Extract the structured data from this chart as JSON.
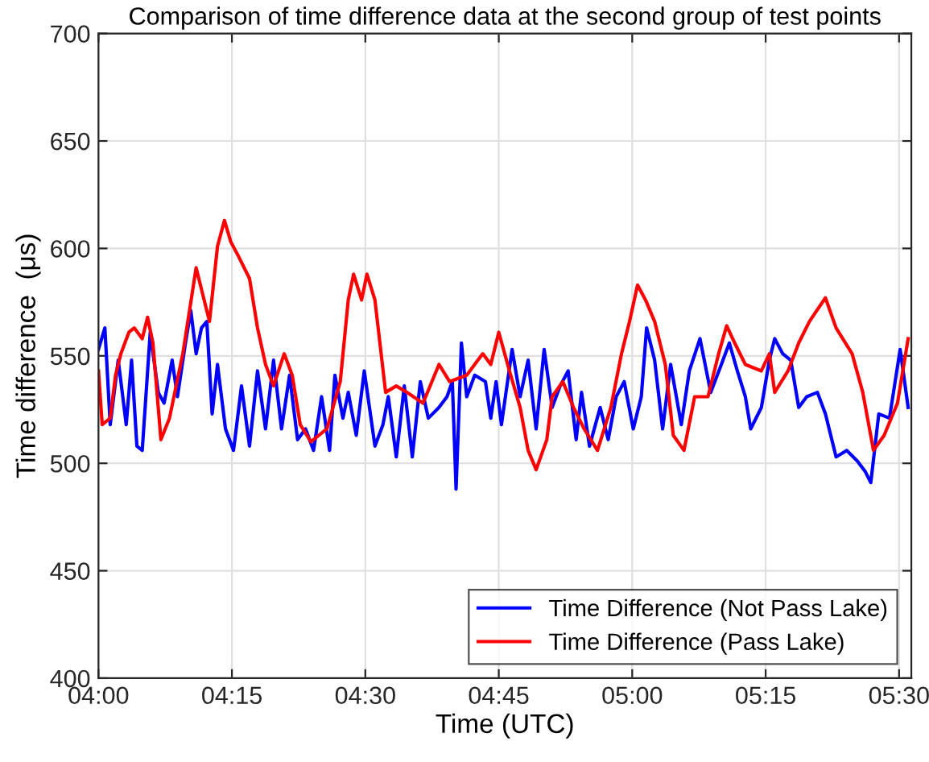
{
  "chart_data": {
    "type": "line",
    "title": "Comparison of time difference data at the second group of test points",
    "xlabel": "Time (UTC)",
    "ylabel": "Time difference  (μs)",
    "xlim": [
      4,
      5.523
    ],
    "xticks": [
      {
        "value": 4,
        "label": "04:00"
      },
      {
        "value": 4.25,
        "label": "04:15"
      },
      {
        "value": 4.5,
        "label": "04:30"
      },
      {
        "value": 4.75,
        "label": "04:45"
      },
      {
        "value": 5,
        "label": "05:00"
      },
      {
        "value": 5.25,
        "label": "05:15"
      },
      {
        "value": 5.5,
        "label": "05:30"
      }
    ],
    "ylim": [
      400,
      700
    ],
    "yticks": [
      400,
      450,
      500,
      550,
      600,
      650,
      700
    ],
    "grid": true,
    "legend": "bottom right",
    "line_style": "solid",
    "marker": "none",
    "series": [
      {
        "name": "Time Difference (Not Pass Lake)",
        "color": "#0000ff",
        "x": [
          4.0,
          4.012,
          4.022,
          4.037,
          4.052,
          4.062,
          4.072,
          4.082,
          4.097,
          4.112,
          4.123,
          4.138,
          4.148,
          4.163,
          4.173,
          4.183,
          4.193,
          4.203,
          4.213,
          4.223,
          4.238,
          4.253,
          4.268,
          4.283,
          4.298,
          4.313,
          4.328,
          4.343,
          4.358,
          4.373,
          4.388,
          4.403,
          4.418,
          4.433,
          4.443,
          4.458,
          4.468,
          4.483,
          4.498,
          4.518,
          4.533,
          4.543,
          4.558,
          4.573,
          4.588,
          4.603,
          4.618,
          4.638,
          4.653,
          4.663,
          4.67,
          4.68,
          4.69,
          4.705,
          4.725,
          4.735,
          4.745,
          4.755,
          4.775,
          4.79,
          4.805,
          4.82,
          4.835,
          4.85,
          4.865,
          4.88,
          4.895,
          4.905,
          4.92,
          4.94,
          4.955,
          4.97,
          4.985,
          5.002,
          5.017,
          5.027,
          5.042,
          5.057,
          5.072,
          5.092,
          5.107,
          5.127,
          5.147,
          5.167,
          5.182,
          5.197,
          5.212,
          5.222,
          5.242,
          5.257,
          5.267,
          5.282,
          5.297,
          5.312,
          5.327,
          5.347,
          5.362,
          5.382,
          5.402,
          5.422,
          5.437,
          5.447,
          5.462,
          5.482,
          5.502,
          5.517
        ],
        "values": [
          553,
          563,
          518,
          548,
          518,
          548,
          508,
          506,
          561,
          533,
          528,
          548,
          531,
          556,
          571,
          551,
          563,
          566,
          523,
          546,
          516,
          506,
          536,
          508,
          543,
          516,
          548,
          516,
          541,
          511,
          516,
          506,
          531,
          506,
          541,
          521,
          533,
          513,
          543,
          508,
          518,
          531,
          503,
          536,
          503,
          538,
          521,
          526,
          531,
          538,
          488,
          556,
          531,
          541,
          538,
          521,
          538,
          518,
          553,
          531,
          548,
          516,
          553,
          526,
          536,
          543,
          511,
          533,
          508,
          526,
          511,
          531,
          538,
          516,
          531,
          563,
          548,
          516,
          546,
          518,
          543,
          558,
          533,
          546,
          556,
          543,
          531,
          516,
          526,
          548,
          558,
          551,
          548,
          526,
          531,
          533,
          523,
          503,
          506,
          501,
          496,
          491,
          523,
          521,
          553,
          526
        ]
      },
      {
        "name": "Time Difference (Pass Lake)",
        "color": "#ff0000",
        "x": [
          4.0,
          4.007,
          4.022,
          4.032,
          4.042,
          4.057,
          4.067,
          4.082,
          4.092,
          4.102,
          4.117,
          4.133,
          4.158,
          4.183,
          4.198,
          4.208,
          4.223,
          4.236,
          4.248,
          4.263,
          4.283,
          4.298,
          4.313,
          4.328,
          4.348,
          4.363,
          4.378,
          4.398,
          4.428,
          4.453,
          4.468,
          4.478,
          4.493,
          4.503,
          4.518,
          4.538,
          4.558,
          4.578,
          4.608,
          4.638,
          4.658,
          4.69,
          4.72,
          4.735,
          4.75,
          4.77,
          4.79,
          4.805,
          4.82,
          4.84,
          4.85,
          4.87,
          4.89,
          4.91,
          4.935,
          4.96,
          4.98,
          4.995,
          5.01,
          5.025,
          5.042,
          5.062,
          5.077,
          5.097,
          5.117,
          5.142,
          5.162,
          5.177,
          5.192,
          5.212,
          5.242,
          5.257,
          5.267,
          5.292,
          5.312,
          5.332,
          5.362,
          5.382,
          5.412,
          5.432,
          5.452,
          5.472,
          5.497,
          5.517
        ],
        "values": [
          543,
          518,
          521,
          541,
          551,
          561,
          563,
          558,
          568,
          556,
          511,
          521,
          551,
          591,
          576,
          566,
          601,
          613,
          603,
          596,
          586,
          563,
          546,
          536,
          551,
          541,
          518,
          510,
          516,
          538,
          576,
          588,
          576,
          588,
          576,
          533,
          536,
          533,
          528,
          546,
          538,
          541,
          551,
          546,
          561,
          543,
          526,
          506,
          497,
          511,
          531,
          538,
          526,
          516,
          506,
          526,
          551,
          566,
          583,
          576,
          566,
          546,
          513,
          506,
          531,
          531,
          551,
          564,
          556,
          546,
          543,
          551,
          533,
          543,
          556,
          566,
          577,
          563,
          551,
          533,
          506,
          513,
          528,
          558
        ]
      }
    ]
  }
}
